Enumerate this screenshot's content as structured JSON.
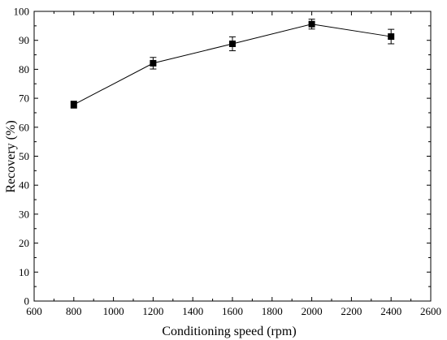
{
  "chart_data": {
    "type": "line",
    "title": "",
    "xlabel": "Conditioning speed (rpm)",
    "ylabel": "Recovery (%)",
    "xlim": [
      600,
      2600
    ],
    "ylim": [
      0,
      100
    ],
    "x_ticks": [
      600,
      800,
      1000,
      1200,
      1400,
      1600,
      1800,
      2000,
      2200,
      2400,
      2600
    ],
    "y_ticks": [
      0,
      10,
      20,
      30,
      40,
      50,
      60,
      70,
      80,
      90,
      100
    ],
    "grid": false,
    "legend": "none",
    "marker": "square",
    "color": "#000000",
    "series": [
      {
        "x": [
          800,
          1200,
          1600,
          2000,
          2400
        ],
        "y": [
          67.8,
          82.1,
          88.8,
          95.6,
          91.3
        ],
        "error": [
          1.2,
          2.0,
          2.4,
          1.7,
          2.5
        ]
      }
    ]
  }
}
